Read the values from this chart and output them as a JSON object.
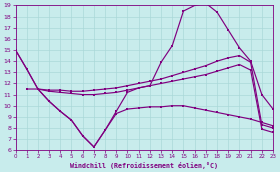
{
  "xlabel": "Windchill (Refroidissement éolien,°C)",
  "bg_color": "#c8ecec",
  "grid_color": "#aad8d8",
  "line_color": "#800080",
  "xlim": [
    0,
    23
  ],
  "ylim": [
    6,
    19
  ],
  "curve1_x": [
    0,
    1,
    2,
    3,
    4,
    5,
    6,
    7,
    8,
    9,
    10,
    11,
    12,
    13,
    14,
    15,
    16,
    17,
    18,
    19,
    20,
    21,
    22,
    23
  ],
  "curve1_y": [
    15,
    13.3,
    11.5,
    10.4,
    9.5,
    8.7,
    7.3,
    6.3,
    7.8,
    9.5,
    11.2,
    11.6,
    11.8,
    13.9,
    15.4,
    18.5,
    19.0,
    19.2,
    18.4,
    16.8,
    15.2,
    14.0,
    11.0,
    9.7
  ],
  "curve2_x": [
    0,
    1,
    2,
    3,
    4,
    5,
    6,
    7,
    8,
    9,
    10,
    11,
    12,
    13,
    14,
    15,
    16,
    17,
    18,
    19,
    20,
    21,
    22,
    23
  ],
  "curve2_y": [
    15.0,
    13.3,
    11.5,
    11.4,
    11.4,
    11.3,
    11.3,
    11.4,
    11.5,
    11.6,
    11.8,
    12.0,
    12.2,
    12.4,
    12.7,
    13.0,
    13.3,
    13.6,
    14.0,
    14.3,
    14.5,
    13.9,
    8.3,
    8.0
  ],
  "curve3_x": [
    1,
    2,
    3,
    4,
    5,
    6,
    7,
    8,
    9,
    10,
    11,
    12,
    13,
    14,
    15,
    16,
    17,
    18,
    19,
    20,
    21,
    22,
    23
  ],
  "curve3_y": [
    11.5,
    11.5,
    11.3,
    11.2,
    11.1,
    11.0,
    11.0,
    11.1,
    11.2,
    11.4,
    11.6,
    11.8,
    12.0,
    12.2,
    12.4,
    12.6,
    12.8,
    13.1,
    13.4,
    13.7,
    13.2,
    7.9,
    7.6
  ],
  "curve4_x": [
    2,
    3,
    4,
    5,
    6,
    7,
    8,
    9,
    10,
    11,
    12,
    13,
    14,
    15,
    16,
    17,
    18,
    19,
    20,
    21,
    22,
    23
  ],
  "curve4_y": [
    11.5,
    10.4,
    9.5,
    8.7,
    7.3,
    6.3,
    7.8,
    9.3,
    9.7,
    9.8,
    9.9,
    9.9,
    10.0,
    10.0,
    9.8,
    9.6,
    9.4,
    9.2,
    9.0,
    8.8,
    8.5,
    8.2
  ]
}
